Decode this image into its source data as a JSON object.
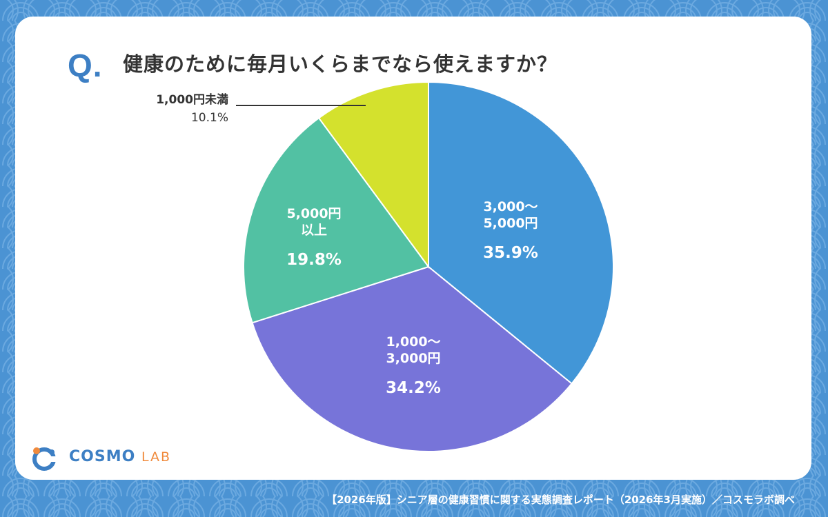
{
  "question": {
    "mark": "Q",
    "dot": ".",
    "text": "健康のために毎月いくらまでなら使えますか？"
  },
  "chart_data": {
    "type": "pie",
    "title": "健康のために毎月いくらまでなら使えますか？",
    "start_angle_deg": 0,
    "direction": "clockwise",
    "slices": [
      {
        "label_lines": [
          "3,000〜",
          "5,000円"
        ],
        "value": 35.9,
        "percent_label": "35.9%",
        "color": "#4296d7"
      },
      {
        "label_lines": [
          "1,000〜",
          "3,000円"
        ],
        "value": 34.2,
        "percent_label": "34.2%",
        "color": "#7774d9"
      },
      {
        "label_lines": [
          "5,000円",
          "以上"
        ],
        "value": 19.8,
        "percent_label": "19.8%",
        "color": "#52c1a3"
      },
      {
        "label_lines": [
          "1,000円未満"
        ],
        "value": 10.1,
        "percent_label": "10.1%",
        "color": "#d4e12d"
      }
    ],
    "legend": "none"
  },
  "branding": {
    "logo_main": "COSMO",
    "logo_sub": "LAB",
    "logo_color": "#3d7fc4",
    "logo_accent": "#f08a3c"
  },
  "footer": {
    "text": "【2026年版】シニア層の健康習慣に関する実態調査レポート（2026年3月実施）／コスモラボ調べ"
  },
  "colors": {
    "background": "#4b93d3",
    "card": "#ffffff",
    "title_text": "#333333"
  }
}
